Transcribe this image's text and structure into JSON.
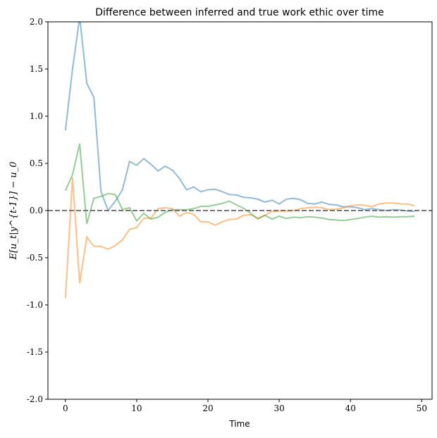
{
  "chart_data": {
    "type": "line",
    "title": "Difference between inferred and true work ethic over time",
    "xlabel": "Time",
    "ylabel": "E[u_t|y^{t-1}] − u_0",
    "xlim": [
      -2.45,
      51.45
    ],
    "ylim": [
      -2,
      2
    ],
    "xticks": [
      0,
      10,
      20,
      30,
      40,
      50
    ],
    "yticks": [
      "-2.0",
      "-1.5",
      "-1.0",
      "-0.5",
      "0.0",
      "0.5",
      "1.0",
      "1.5",
      "2.0"
    ],
    "grid": false,
    "legend": "none",
    "reference_line": {
      "y": 0,
      "style": "dashed",
      "color": "#777777"
    },
    "x": [
      0,
      1,
      2,
      3,
      4,
      5,
      6,
      7,
      8,
      9,
      10,
      11,
      12,
      13,
      14,
      15,
      16,
      17,
      18,
      19,
      20,
      21,
      22,
      23,
      24,
      25,
      26,
      27,
      28,
      29,
      30,
      31,
      32,
      33,
      34,
      35,
      36,
      37,
      38,
      39,
      40,
      41,
      42,
      43,
      44,
      45,
      46,
      47,
      48,
      49
    ],
    "series": [
      {
        "color": "#1f77b4",
        "values": [
          0.85,
          1.5,
          2.05,
          1.35,
          1.2,
          0.2,
          0.0,
          0.1,
          0.22,
          0.52,
          0.48,
          0.55,
          0.49,
          0.42,
          0.47,
          0.43,
          0.34,
          0.22,
          0.25,
          0.2,
          0.22,
          0.225,
          0.2,
          0.17,
          0.165,
          0.14,
          0.135,
          0.12,
          0.09,
          0.11,
          0.07,
          0.12,
          0.13,
          0.115,
          0.075,
          0.07,
          0.09,
          0.065,
          0.06,
          0.04,
          0.04,
          0.03,
          0.01,
          0.02,
          0.01,
          0.0,
          0.01,
          0.005,
          -0.005,
          -0.01
        ]
      },
      {
        "color": "#ff7f0e",
        "values": [
          -0.93,
          0.35,
          -0.77,
          -0.28,
          -0.38,
          -0.38,
          -0.41,
          -0.37,
          -0.31,
          -0.2,
          -0.18,
          -0.08,
          -0.08,
          0.02,
          0.03,
          0.02,
          -0.06,
          -0.02,
          -0.04,
          -0.12,
          -0.12,
          -0.155,
          -0.12,
          -0.095,
          -0.09,
          -0.05,
          -0.045,
          -0.08,
          -0.05,
          -0.01,
          -0.005,
          -0.005,
          0.0,
          0.02,
          0.03,
          0.035,
          0.03,
          0.01,
          0.015,
          0.03,
          0.05,
          0.06,
          0.055,
          0.04,
          0.07,
          0.08,
          0.08,
          0.07,
          0.07,
          0.05
        ]
      },
      {
        "color": "#2ca02c",
        "values": [
          0.21,
          0.38,
          0.71,
          -0.14,
          0.13,
          0.15,
          0.18,
          0.17,
          0.01,
          0.03,
          -0.11,
          -0.03,
          -0.09,
          -0.07,
          -0.02,
          0.01,
          0.01,
          0.01,
          0.02,
          0.045,
          0.045,
          0.06,
          0.075,
          0.1,
          0.06,
          0.025,
          -0.03,
          -0.09,
          -0.05,
          -0.09,
          -0.06,
          -0.085,
          -0.07,
          -0.075,
          -0.065,
          -0.07,
          -0.08,
          -0.095,
          -0.1,
          -0.105,
          -0.095,
          -0.085,
          -0.07,
          -0.06,
          -0.07,
          -0.065,
          -0.07,
          -0.065,
          -0.065,
          -0.06
        ]
      }
    ]
  }
}
